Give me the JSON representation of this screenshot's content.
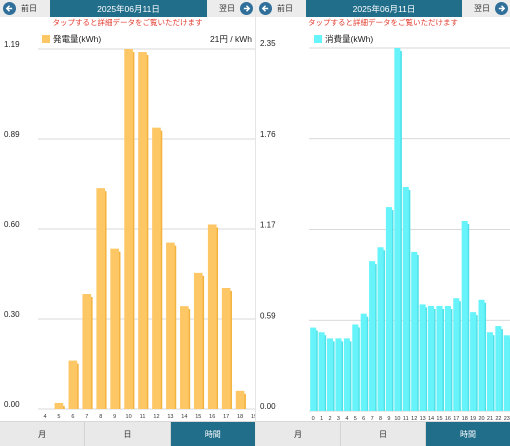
{
  "left": {
    "nav": {
      "prev": "前日",
      "date": "2025年06月11日",
      "next": "翌日"
    },
    "hint": "タップすると詳細データをご覧いただけます",
    "legend": "発電量(kWh)",
    "price": "21円 / kWh",
    "tabs": [
      "月",
      "日",
      "時間"
    ],
    "active_tab": 2,
    "colors": {
      "bar": "#fdc766",
      "bar_shade": "#f3b33f"
    },
    "icons": {
      "prev": "left-arrow-icon",
      "next": "right-arrow-icon"
    }
  },
  "right": {
    "nav": {
      "prev": "前日",
      "date": "2025年06月11日",
      "next": "翌日"
    },
    "hint": "タップすると詳細データをご覧いただけます",
    "legend": "消費量(kWh)",
    "tabs": [
      "月",
      "日",
      "時間"
    ],
    "active_tab": 2,
    "colors": {
      "bar": "#66f4fa",
      "bar_shade": "#4fe0e8"
    },
    "icons": {
      "prev": "left-arrow-icon",
      "next": "right-arrow-icon"
    }
  },
  "chart_data": [
    {
      "type": "bar",
      "title": "",
      "series": [
        {
          "name": "発電量(kWh)",
          "values": [
            0,
            0.02,
            0.16,
            0.38,
            0.73,
            0.53,
            1.19,
            1.18,
            0.93,
            0.55,
            0.34,
            0.45,
            0.61,
            0.4,
            0.06,
            0
          ]
        }
      ],
      "categories": [
        "4",
        "5",
        "6",
        "7",
        "8",
        "9",
        "10",
        "11",
        "12",
        "13",
        "14",
        "15",
        "16",
        "17",
        "18",
        "19"
      ],
      "y_ticks": [
        "0.00",
        "0.30",
        "0.60",
        "0.89",
        "1.19"
      ],
      "ylim": [
        0,
        1.19
      ],
      "grid": true
    },
    {
      "type": "bar",
      "title": "",
      "series": [
        {
          "name": "消費量(kWh)",
          "values": [
            0.54,
            0.51,
            0.47,
            0.47,
            0.47,
            0.56,
            0.63,
            0.97,
            1.06,
            1.32,
            2.35,
            1.45,
            1.03,
            0.69,
            0.68,
            0.68,
            0.68,
            0.73,
            1.23,
            0.64,
            0.72,
            0.51,
            0.55,
            0.49
          ]
        }
      ],
      "categories": [
        "0",
        "1",
        "2",
        "3",
        "4",
        "5",
        "6",
        "7",
        "8",
        "9",
        "10",
        "11",
        "12",
        "13",
        "14",
        "15",
        "16",
        "17",
        "18",
        "19",
        "20",
        "21",
        "22",
        "23"
      ],
      "y_ticks": [
        "0.00",
        "0.59",
        "1.17",
        "1.76",
        "2.35"
      ],
      "ylim": [
        0,
        2.35
      ],
      "grid": true
    }
  ]
}
